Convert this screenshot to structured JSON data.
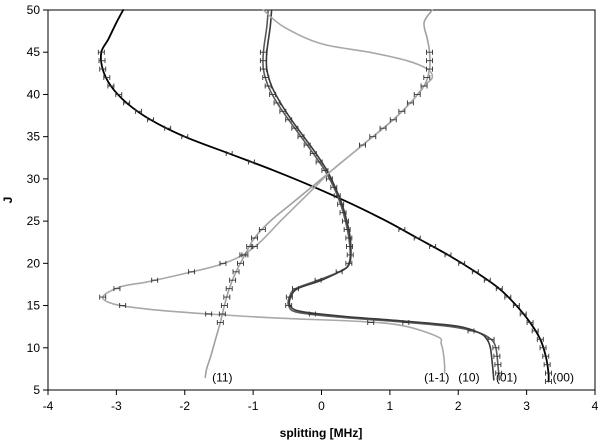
{
  "chart_data": {
    "type": "line",
    "title": "",
    "xlabel": "splitting [MHz]",
    "ylabel": "J",
    "xlim": [
      -4,
      4
    ],
    "ylim": [
      5,
      50
    ],
    "xticks": [
      -4,
      -3,
      -2,
      -1,
      0,
      1,
      2,
      3,
      4
    ],
    "yticks": [
      5,
      10,
      15,
      20,
      25,
      30,
      35,
      40,
      45,
      50
    ],
    "x_tick_labels": [
      "-4",
      "-3",
      "-2",
      "-1",
      "0",
      "1",
      "2",
      "3",
      "4"
    ],
    "y_tick_labels": [
      "5",
      "10",
      "15",
      "20",
      "25",
      "30",
      "35",
      "40",
      "45",
      "50"
    ],
    "grid": false,
    "legend": "none (curves labelled directly)",
    "series": [
      {
        "name": "(00)",
        "color": "#000000",
        "points": [
          [
            -2.9,
            50
          ],
          [
            -3.0,
            48.5
          ],
          [
            -3.12,
            46.5
          ],
          [
            -3.22,
            45
          ],
          [
            -3.2,
            43
          ],
          [
            -3.08,
            41
          ],
          [
            -2.85,
            39
          ],
          [
            -2.5,
            37
          ],
          [
            -2.0,
            35
          ],
          [
            -1.35,
            33
          ],
          [
            -0.7,
            31
          ],
          [
            -0.1,
            29
          ],
          [
            0.45,
            27
          ],
          [
            0.95,
            25
          ],
          [
            1.4,
            23
          ],
          [
            1.85,
            21
          ],
          [
            2.25,
            19
          ],
          [
            2.6,
            17
          ],
          [
            2.85,
            15
          ],
          [
            3.05,
            13
          ],
          [
            3.2,
            11
          ],
          [
            3.28,
            9
          ],
          [
            3.32,
            7
          ],
          [
            3.32,
            6
          ]
        ],
        "markers_y": [
          6,
          7,
          8,
          9,
          10,
          11,
          12,
          13,
          14,
          15,
          16,
          17,
          18,
          19,
          20,
          21,
          22,
          23,
          24,
          32,
          33,
          35,
          36,
          37,
          38,
          39,
          40,
          41,
          42,
          43,
          44,
          45
        ]
      },
      {
        "name": "(01)",
        "color": "#5a5a5a",
        "points": [
          [
            -0.78,
            50
          ],
          [
            -0.8,
            48
          ],
          [
            -0.85,
            45
          ],
          [
            -0.85,
            43
          ],
          [
            -0.78,
            41
          ],
          [
            -0.65,
            39
          ],
          [
            -0.48,
            37
          ],
          [
            -0.3,
            35
          ],
          [
            -0.12,
            33
          ],
          [
            0.05,
            31
          ],
          [
            0.18,
            29
          ],
          [
            0.28,
            27
          ],
          [
            0.35,
            25
          ],
          [
            0.4,
            23
          ],
          [
            0.42,
            21
          ],
          [
            0.4,
            20
          ],
          [
            0.32,
            19.2
          ],
          [
            -0.05,
            18
          ],
          [
            -0.38,
            17
          ],
          [
            -0.47,
            16
          ],
          [
            -0.48,
            15
          ],
          [
            -0.35,
            14.2
          ],
          [
            0.3,
            13.6
          ],
          [
            1.1,
            13.1
          ],
          [
            1.9,
            12.5
          ],
          [
            2.3,
            11.8
          ],
          [
            2.48,
            11
          ],
          [
            2.55,
            10
          ],
          [
            2.58,
            8
          ],
          [
            2.6,
            6.2
          ]
        ],
        "markers_y": [
          6,
          7,
          8,
          9,
          10,
          11,
          12,
          13,
          14,
          15,
          16,
          17,
          18,
          19,
          20,
          21,
          22,
          23,
          24,
          25,
          26,
          27,
          28,
          29,
          30,
          31,
          32,
          33,
          34,
          35,
          36,
          37,
          38,
          39,
          40,
          41,
          42,
          43,
          44,
          45
        ]
      },
      {
        "name": "(10)",
        "color": "#3a3a3a",
        "points": [
          [
            -0.73,
            50
          ],
          [
            -0.75,
            48
          ],
          [
            -0.8,
            45
          ],
          [
            -0.8,
            43
          ],
          [
            -0.73,
            41
          ],
          [
            -0.6,
            39
          ],
          [
            -0.44,
            37
          ],
          [
            -0.26,
            35
          ],
          [
            -0.08,
            33
          ],
          [
            0.08,
            31
          ],
          [
            0.2,
            29
          ],
          [
            0.3,
            27
          ],
          [
            0.37,
            25
          ],
          [
            0.42,
            23
          ],
          [
            0.43,
            21
          ],
          [
            0.41,
            20
          ],
          [
            0.33,
            19.3
          ],
          [
            0.0,
            18
          ],
          [
            -0.35,
            17
          ],
          [
            -0.45,
            16
          ],
          [
            -0.46,
            15
          ],
          [
            -0.3,
            14.3
          ],
          [
            0.35,
            13.7
          ],
          [
            1.15,
            13.2
          ],
          [
            1.95,
            12.6
          ],
          [
            2.3,
            11.8
          ],
          [
            2.42,
            11
          ],
          [
            2.47,
            10
          ],
          [
            2.5,
            8
          ],
          [
            2.52,
            6.2
          ]
        ],
        "markers_y": []
      },
      {
        "name": "(11)",
        "color": "#a0a0a0",
        "points": [
          [
            1.62,
            50
          ],
          [
            1.5,
            48.5
          ],
          [
            1.55,
            46.5
          ],
          [
            1.58,
            45
          ],
          [
            1.58,
            43
          ],
          [
            1.5,
            41
          ],
          [
            1.3,
            39
          ],
          [
            1.05,
            37
          ],
          [
            0.75,
            35
          ],
          [
            0.45,
            33
          ],
          [
            0.15,
            31
          ],
          [
            -0.15,
            29
          ],
          [
            -0.45,
            27
          ],
          [
            -0.75,
            25
          ],
          [
            -0.98,
            23
          ],
          [
            -1.12,
            21
          ],
          [
            -1.25,
            19
          ],
          [
            -1.35,
            17
          ],
          [
            -1.42,
            15
          ],
          [
            -1.48,
            13
          ],
          [
            -1.55,
            11
          ],
          [
            -1.62,
            9
          ],
          [
            -1.68,
            7.5
          ],
          [
            -1.7,
            6.5
          ]
        ],
        "markers_y": [
          13,
          14,
          15,
          16,
          17,
          18,
          19,
          20,
          21,
          22,
          23,
          24,
          34,
          35,
          36,
          37,
          38,
          39,
          40,
          41,
          42,
          43,
          44,
          45
        ]
      },
      {
        "name": "(1-1)",
        "color": "#a8a8a8",
        "points": [
          [
            -0.85,
            50
          ],
          [
            -0.55,
            48
          ],
          [
            0.0,
            46
          ],
          [
            0.7,
            45
          ],
          [
            1.25,
            44
          ],
          [
            1.55,
            43
          ],
          [
            1.62,
            42
          ],
          [
            1.5,
            41
          ],
          [
            1.3,
            39
          ],
          [
            1.05,
            37
          ],
          [
            0.75,
            35
          ],
          [
            0.45,
            33
          ],
          [
            0.15,
            31
          ],
          [
            -0.1,
            29
          ],
          [
            -0.35,
            27
          ],
          [
            -0.6,
            25
          ],
          [
            -0.9,
            22.5
          ],
          [
            -1.15,
            21
          ],
          [
            -1.5,
            19.8
          ],
          [
            -2.0,
            18.8
          ],
          [
            -2.55,
            17.8
          ],
          [
            -2.95,
            17.2
          ],
          [
            -3.2,
            16
          ],
          [
            -3.0,
            15.1
          ],
          [
            -2.45,
            14.5
          ],
          [
            -1.65,
            14
          ],
          [
            -0.6,
            13.5
          ],
          [
            0.6,
            13.1
          ],
          [
            1.2,
            12.6
          ],
          [
            1.7,
            11.3
          ],
          [
            1.75,
            10.5
          ],
          [
            1.78,
            9.5
          ],
          [
            1.8,
            8
          ],
          [
            1.8,
            7
          ]
        ],
        "markers_y": [
          13,
          14,
          15,
          16,
          17,
          18,
          19,
          20,
          21,
          22
        ]
      }
    ],
    "labels": [
      {
        "text": "(11)",
        "x": -1.6,
        "y": 6.5
      },
      {
        "text": "(1-1)",
        "x": 1.5,
        "y": 6.5
      },
      {
        "text": "(10)",
        "x": 2.0,
        "y": 6.5
      },
      {
        "text": "(01)",
        "x": 2.55,
        "y": 6.5
      },
      {
        "text": "(00)",
        "x": 3.38,
        "y": 6.5
      }
    ]
  }
}
